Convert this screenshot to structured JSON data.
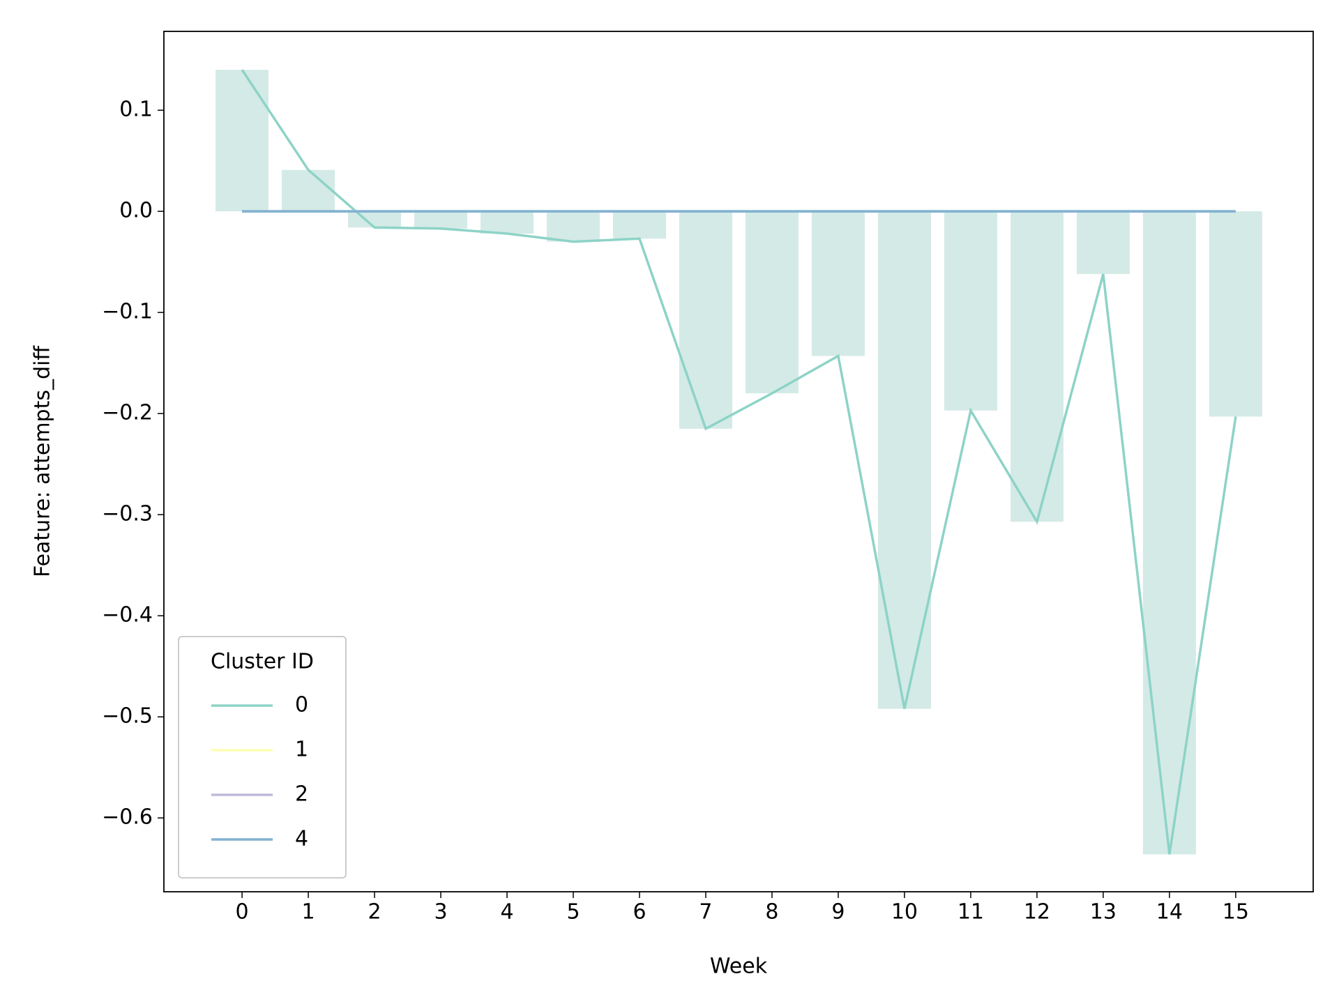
{
  "chart_data": {
    "type": "bar_line",
    "xlabel": "Week",
    "ylabel": "Feature: attempts_diff",
    "x": [
      0,
      1,
      2,
      3,
      4,
      5,
      6,
      7,
      8,
      9,
      10,
      11,
      12,
      13,
      14,
      15
    ],
    "xlim": [
      -1.18,
      16.17
    ],
    "xticks": [
      0,
      1,
      2,
      3,
      4,
      5,
      6,
      7,
      8,
      9,
      10,
      11,
      12,
      13,
      14,
      15
    ],
    "ylim": [
      -0.673,
      0.178
    ],
    "yticks": [
      {
        "value": 0.1,
        "label": "0.1"
      },
      {
        "value": 0,
        "label": "0.0"
      },
      {
        "value": -0.1,
        "label": "−0.1"
      },
      {
        "value": -0.2,
        "label": "−0.2"
      },
      {
        "value": -0.3,
        "label": "−0.3"
      },
      {
        "value": -0.4,
        "label": "−0.4"
      },
      {
        "value": -0.5,
        "label": "−0.5"
      },
      {
        "value": -0.6,
        "label": "−0.6"
      }
    ],
    "bar_color": "#d4eae6",
    "legend_title": "Cluster ID",
    "legend": "lower left",
    "series": [
      {
        "name": "0",
        "color": "#8dd3c7",
        "values": [
          0.14,
          0.041,
          -0.016,
          -0.017,
          -0.022,
          -0.03,
          -0.027,
          -0.215,
          -0.18,
          -0.143,
          -0.492,
          -0.197,
          -0.307,
          -0.062,
          -0.636,
          -0.203
        ]
      },
      {
        "name": "1",
        "color": "#ffffb3",
        "values": [
          0,
          0,
          0,
          0,
          0,
          0,
          0,
          0,
          0,
          0,
          0,
          0,
          0,
          0,
          0,
          0
        ]
      },
      {
        "name": "2",
        "color": "#bebada",
        "values": [
          0,
          0,
          0,
          0,
          0,
          0,
          0,
          0,
          0,
          0,
          0,
          0,
          0,
          0,
          0,
          0
        ]
      },
      {
        "name": "4",
        "color": "#80b1d3",
        "values": [
          0,
          0,
          0,
          0,
          0,
          0,
          0,
          0,
          0,
          0,
          0,
          0,
          0,
          0,
          0,
          0
        ]
      }
    ]
  }
}
